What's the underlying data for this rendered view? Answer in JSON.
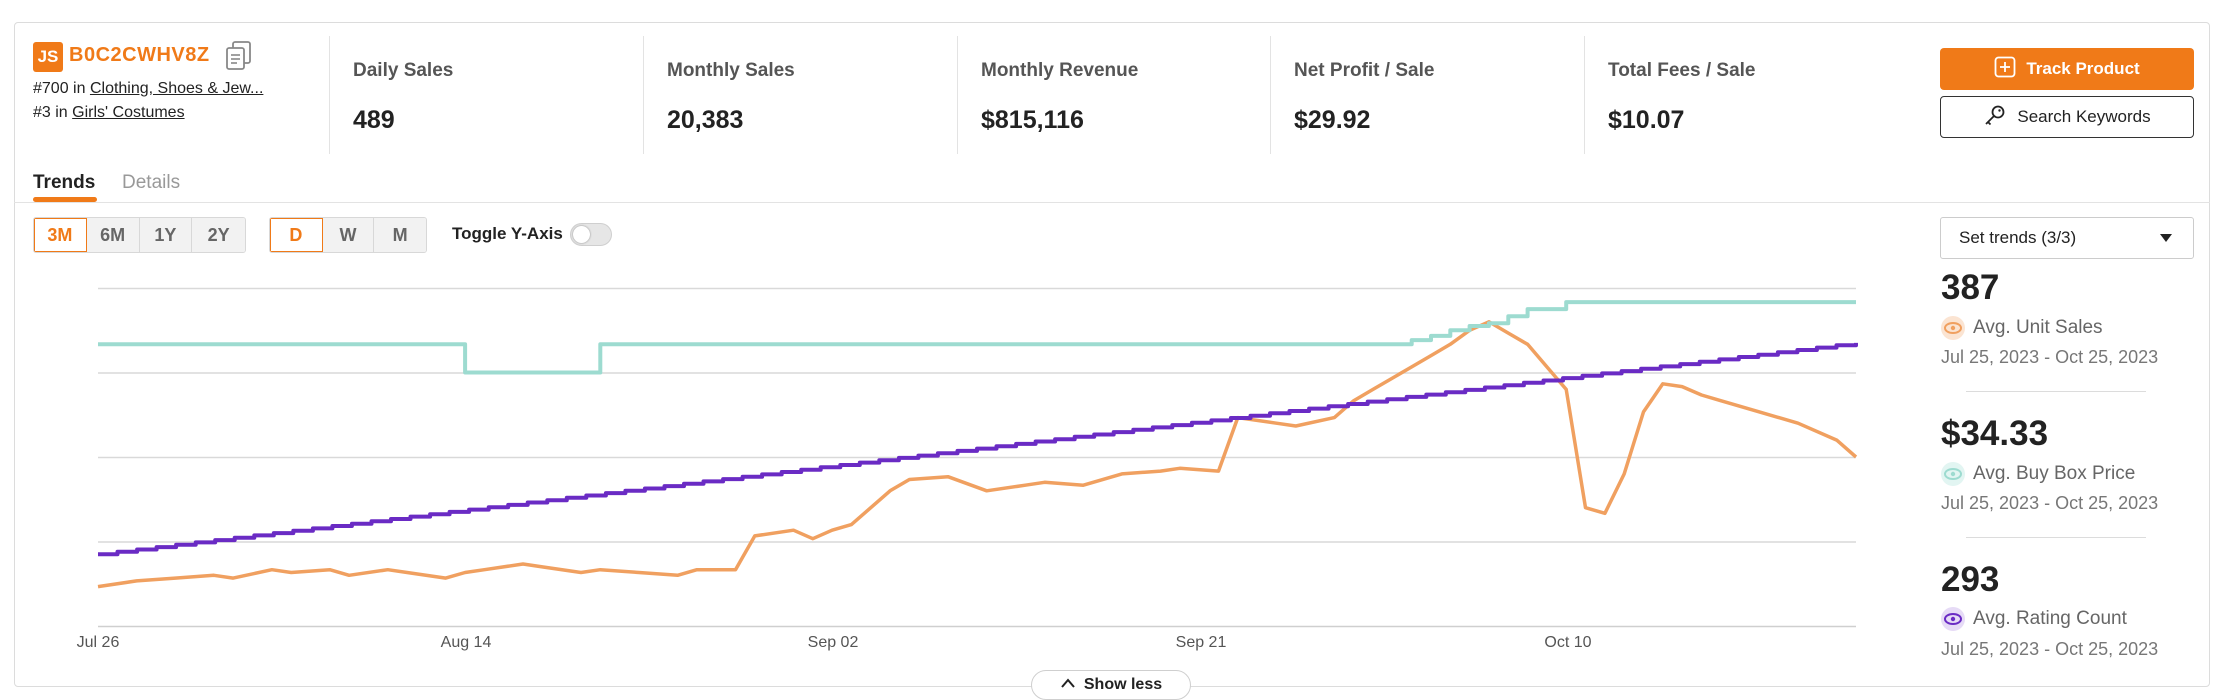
{
  "product": {
    "logo_text": "JS",
    "asin": "B0C2CWHV8Z",
    "ranks": [
      {
        "prefix": "#700 in",
        "category": "Clothing, Shoes & Jew..."
      },
      {
        "prefix": "#3 in",
        "category": "Girls' Costumes"
      }
    ]
  },
  "metrics": [
    {
      "label": "Daily Sales",
      "value": "489"
    },
    {
      "label": "Monthly Sales",
      "value": "20,383"
    },
    {
      "label": "Monthly Revenue",
      "value": "$815,116"
    },
    {
      "label": "Net Profit / Sale",
      "value": "$29.92"
    },
    {
      "label": "Total Fees / Sale",
      "value": "$10.07"
    }
  ],
  "actions": {
    "track_label": "Track Product",
    "search_label": "Search Keywords"
  },
  "tabs": [
    {
      "label": "Trends",
      "active": true
    },
    {
      "label": "Details",
      "active": false
    }
  ],
  "range_options": [
    "3M",
    "6M",
    "1Y",
    "2Y"
  ],
  "range_selected": "3M",
  "granularity_options": [
    "D",
    "W",
    "M"
  ],
  "granularity_selected": "D",
  "toggle_y_axis": {
    "label": "Toggle Y-Axis",
    "on": false
  },
  "set_trends_label": "Set trends (3/3)",
  "stats": [
    {
      "value": "387",
      "label": "Avg. Unit Sales",
      "range": "Jul 25, 2023 - Oct 25, 2023",
      "color": "#f0a060"
    },
    {
      "value": "$34.33",
      "label": "Avg. Buy Box Price",
      "range": "Jul 25, 2023 - Oct 25, 2023",
      "color": "#9ddbd0"
    },
    {
      "value": "293",
      "label": "Avg. Rating Count",
      "range": "Jul 25, 2023 - Oct 25, 2023",
      "color": "#6a2bc4"
    }
  ],
  "show_less_label": "Show less",
  "colors": {
    "accent": "#f07a18",
    "unit_sales": "#f0a060",
    "buy_box": "#9ddbd0",
    "rating": "#6a2bc4"
  },
  "chart_data": {
    "type": "line",
    "x_tick_labels": [
      "Jul 26",
      "Aug 14",
      "Sep 02",
      "Sep 21",
      "Oct 10"
    ],
    "x_range": [
      "2023-07-26",
      "2023-10-25"
    ],
    "grid": true,
    "series": [
      {
        "name": "Avg. Unit Sales",
        "color": "#f0a060",
        "ylim": [
          0,
          600
        ],
        "x": [
          "2023-07-26",
          "2023-07-28",
          "2023-07-30",
          "2023-08-01",
          "2023-08-02",
          "2023-08-04",
          "2023-08-05",
          "2023-08-07",
          "2023-08-08",
          "2023-08-10",
          "2023-08-11",
          "2023-08-13",
          "2023-08-14",
          "2023-08-15",
          "2023-08-17",
          "2023-08-18",
          "2023-08-20",
          "2023-08-21",
          "2023-08-23",
          "2023-08-25",
          "2023-08-26",
          "2023-08-28",
          "2023-08-29",
          "2023-08-31",
          "2023-09-01",
          "2023-09-02",
          "2023-09-03",
          "2023-09-05",
          "2023-09-06",
          "2023-09-08",
          "2023-09-10",
          "2023-09-12",
          "2023-09-13",
          "2023-09-15",
          "2023-09-17",
          "2023-09-19",
          "2023-09-20",
          "2023-09-22",
          "2023-09-23",
          "2023-09-25",
          "2023-09-26",
          "2023-09-28",
          "2023-09-29",
          "2023-09-30",
          "2023-10-02",
          "2023-10-03",
          "2023-10-04",
          "2023-10-05",
          "2023-10-06",
          "2023-10-07",
          "2023-10-08",
          "2023-10-09",
          "2023-10-10",
          "2023-10-11",
          "2023-10-12",
          "2023-10-13",
          "2023-10-14",
          "2023-10-15",
          "2023-10-16",
          "2023-10-17",
          "2023-10-18",
          "2023-10-20",
          "2023-10-22",
          "2023-10-24",
          "2023-10-25"
        ],
        "values": [
          70,
          80,
          85,
          90,
          85,
          100,
          95,
          100,
          90,
          100,
          95,
          85,
          95,
          100,
          110,
          105,
          95,
          100,
          95,
          90,
          100,
          100,
          160,
          170,
          155,
          170,
          180,
          240,
          260,
          265,
          240,
          250,
          255,
          250,
          270,
          275,
          280,
          275,
          370,
          360,
          355,
          370,
          400,
          420,
          460,
          480,
          500,
          525,
          540,
          520,
          500,
          460,
          420,
          210,
          200,
          270,
          380,
          430,
          425,
          410,
          400,
          380,
          360,
          330,
          300
        ]
      },
      {
        "name": "Avg. Buy Box Price",
        "color": "#9ddbd0",
        "ylim": [
          0,
          48
        ],
        "x": [
          "2023-07-26",
          "2023-08-14",
          "2023-08-21",
          "2023-10-01",
          "2023-10-02",
          "2023-10-03",
          "2023-10-04",
          "2023-10-05",
          "2023-10-06",
          "2023-10-07",
          "2023-10-08",
          "2023-10-10",
          "2023-10-25"
        ],
        "values": [
          40,
          36,
          40,
          40,
          40.6,
          41.2,
          42,
          42.6,
          43,
          44,
          45,
          46,
          46
        ]
      },
      {
        "name": "Avg. Rating Count",
        "color": "#6a2bc4",
        "ylim": [
          0,
          400
        ],
        "x": [
          "2023-07-26",
          "2023-10-25"
        ],
        "values": [
          85,
          335
        ]
      }
    ]
  }
}
